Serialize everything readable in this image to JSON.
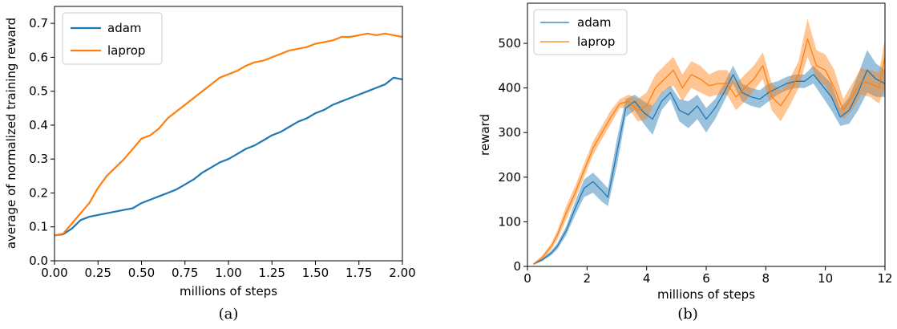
{
  "chart_data": [
    {
      "type": "line",
      "panel_caption": "(a)",
      "xlabel": "millions of steps",
      "ylabel": "average of normalized training reward",
      "xlim": [
        0.0,
        2.0
      ],
      "ylim": [
        0.0,
        0.75
      ],
      "xticks": [
        "0.00",
        "0.25",
        "0.50",
        "0.75",
        "1.00",
        "1.25",
        "1.50",
        "1.75",
        "2.00"
      ],
      "yticks": [
        "0.0",
        "0.1",
        "0.2",
        "0.3",
        "0.4",
        "0.5",
        "0.6",
        "0.7"
      ],
      "legend_position": "top-left",
      "grid": false,
      "series": [
        {
          "name": "adam",
          "color": "#1f77b4",
          "x": [
            0.0,
            0.05,
            0.1,
            0.15,
            0.2,
            0.25,
            0.3,
            0.35,
            0.4,
            0.45,
            0.5,
            0.55,
            0.6,
            0.65,
            0.7,
            0.75,
            0.8,
            0.85,
            0.9,
            0.95,
            1.0,
            1.05,
            1.1,
            1.15,
            1.2,
            1.25,
            1.3,
            1.35,
            1.4,
            1.45,
            1.5,
            1.55,
            1.6,
            1.65,
            1.7,
            1.75,
            1.8,
            1.85,
            1.9,
            1.95,
            2.0
          ],
          "y": [
            0.075,
            0.078,
            0.095,
            0.12,
            0.13,
            0.135,
            0.14,
            0.145,
            0.15,
            0.155,
            0.17,
            0.18,
            0.19,
            0.2,
            0.21,
            0.225,
            0.24,
            0.26,
            0.275,
            0.29,
            0.3,
            0.315,
            0.33,
            0.34,
            0.355,
            0.37,
            0.38,
            0.395,
            0.41,
            0.42,
            0.435,
            0.445,
            0.46,
            0.47,
            0.48,
            0.49,
            0.5,
            0.51,
            0.52,
            0.54,
            0.535
          ]
        },
        {
          "name": "laprop",
          "color": "#ff7f0e",
          "x": [
            0.0,
            0.05,
            0.1,
            0.15,
            0.2,
            0.25,
            0.3,
            0.35,
            0.4,
            0.45,
            0.5,
            0.55,
            0.6,
            0.65,
            0.7,
            0.75,
            0.8,
            0.85,
            0.9,
            0.95,
            1.0,
            1.05,
            1.1,
            1.15,
            1.2,
            1.25,
            1.3,
            1.35,
            1.4,
            1.45,
            1.5,
            1.55,
            1.6,
            1.65,
            1.7,
            1.75,
            1.8,
            1.85,
            1.9,
            1.95,
            2.0
          ],
          "y": [
            0.075,
            0.08,
            0.11,
            0.14,
            0.17,
            0.215,
            0.25,
            0.275,
            0.3,
            0.33,
            0.36,
            0.37,
            0.39,
            0.42,
            0.44,
            0.46,
            0.48,
            0.5,
            0.52,
            0.54,
            0.55,
            0.56,
            0.575,
            0.585,
            0.59,
            0.6,
            0.61,
            0.62,
            0.625,
            0.63,
            0.64,
            0.645,
            0.65,
            0.66,
            0.66,
            0.665,
            0.67,
            0.665,
            0.67,
            0.665,
            0.66
          ]
        }
      ]
    },
    {
      "type": "line",
      "panel_caption": "(b)",
      "xlabel": "millions of steps",
      "ylabel": "reward",
      "xlim": [
        0,
        12
      ],
      "ylim": [
        0,
        590
      ],
      "xticks": [
        "0",
        "2",
        "4",
        "6",
        "8",
        "10",
        "12"
      ],
      "yticks": [
        "0",
        "100",
        "200",
        "300",
        "400",
        "500"
      ],
      "legend_position": "top-left",
      "grid": false,
      "series": [
        {
          "name": "adam",
          "color": "#1f77b4",
          "x": [
            0.2,
            0.5,
            0.8,
            1.0,
            1.3,
            1.6,
            1.9,
            2.2,
            2.5,
            2.7,
            3.0,
            3.3,
            3.6,
            3.9,
            4.2,
            4.5,
            4.8,
            5.1,
            5.4,
            5.7,
            6.0,
            6.3,
            6.6,
            6.9,
            7.2,
            7.5,
            7.8,
            8.1,
            8.4,
            8.7,
            9.0,
            9.3,
            9.6,
            9.9,
            10.2,
            10.5,
            10.8,
            11.1,
            11.4,
            11.7,
            12.0
          ],
          "y": [
            5,
            15,
            30,
            45,
            80,
            130,
            175,
            190,
            170,
            155,
            255,
            355,
            370,
            345,
            330,
            370,
            390,
            350,
            340,
            360,
            330,
            355,
            390,
            430,
            390,
            380,
            375,
            390,
            400,
            410,
            415,
            415,
            430,
            405,
            380,
            335,
            350,
            390,
            440,
            420,
            410
          ],
          "band_low": [
            3,
            12,
            25,
            38,
            70,
            115,
            155,
            165,
            145,
            135,
            225,
            335,
            350,
            320,
            295,
            350,
            375,
            325,
            310,
            330,
            300,
            330,
            370,
            410,
            370,
            360,
            355,
            370,
            385,
            395,
            400,
            400,
            410,
            380,
            350,
            315,
            320,
            350,
            390,
            380,
            380
          ],
          "band_high": [
            7,
            18,
            35,
            52,
            90,
            145,
            195,
            210,
            190,
            175,
            285,
            375,
            385,
            370,
            360,
            390,
            405,
            375,
            370,
            385,
            355,
            375,
            410,
            450,
            410,
            400,
            395,
            410,
            415,
            425,
            430,
            430,
            450,
            430,
            410,
            355,
            380,
            430,
            485,
            455,
            440
          ]
        },
        {
          "name": "laprop",
          "color": "#ff7f0e",
          "x": [
            0.2,
            0.5,
            0.8,
            1.0,
            1.3,
            1.6,
            1.9,
            2.2,
            2.5,
            2.8,
            3.1,
            3.4,
            3.7,
            4.0,
            4.3,
            4.6,
            4.9,
            5.2,
            5.5,
            5.8,
            6.1,
            6.4,
            6.7,
            7.0,
            7.3,
            7.6,
            7.9,
            8.2,
            8.5,
            8.8,
            9.1,
            9.4,
            9.7,
            10.0,
            10.3,
            10.6,
            10.9,
            11.2,
            11.5,
            11.8,
            12.0
          ],
          "y": [
            5,
            20,
            45,
            70,
            120,
            165,
            215,
            265,
            300,
            335,
            365,
            370,
            350,
            360,
            400,
            420,
            440,
            400,
            430,
            420,
            405,
            410,
            410,
            380,
            400,
            420,
            450,
            380,
            360,
            390,
            430,
            510,
            450,
            440,
            400,
            350,
            380,
            415,
            410,
            400,
            470
          ],
          "band_low": [
            3,
            15,
            38,
            60,
            105,
            150,
            200,
            250,
            285,
            320,
            355,
            355,
            325,
            330,
            370,
            395,
            405,
            370,
            400,
            390,
            380,
            385,
            385,
            350,
            370,
            395,
            420,
            350,
            325,
            360,
            400,
            470,
            420,
            405,
            365,
            330,
            350,
            385,
            380,
            365,
            400
          ],
          "band_high": [
            7,
            25,
            52,
            80,
            135,
            180,
            230,
            280,
            315,
            350,
            375,
            385,
            375,
            390,
            430,
            450,
            470,
            430,
            460,
            450,
            430,
            440,
            440,
            410,
            430,
            450,
            480,
            410,
            395,
            420,
            460,
            555,
            485,
            475,
            440,
            375,
            410,
            445,
            440,
            435,
            510
          ]
        }
      ]
    }
  ]
}
